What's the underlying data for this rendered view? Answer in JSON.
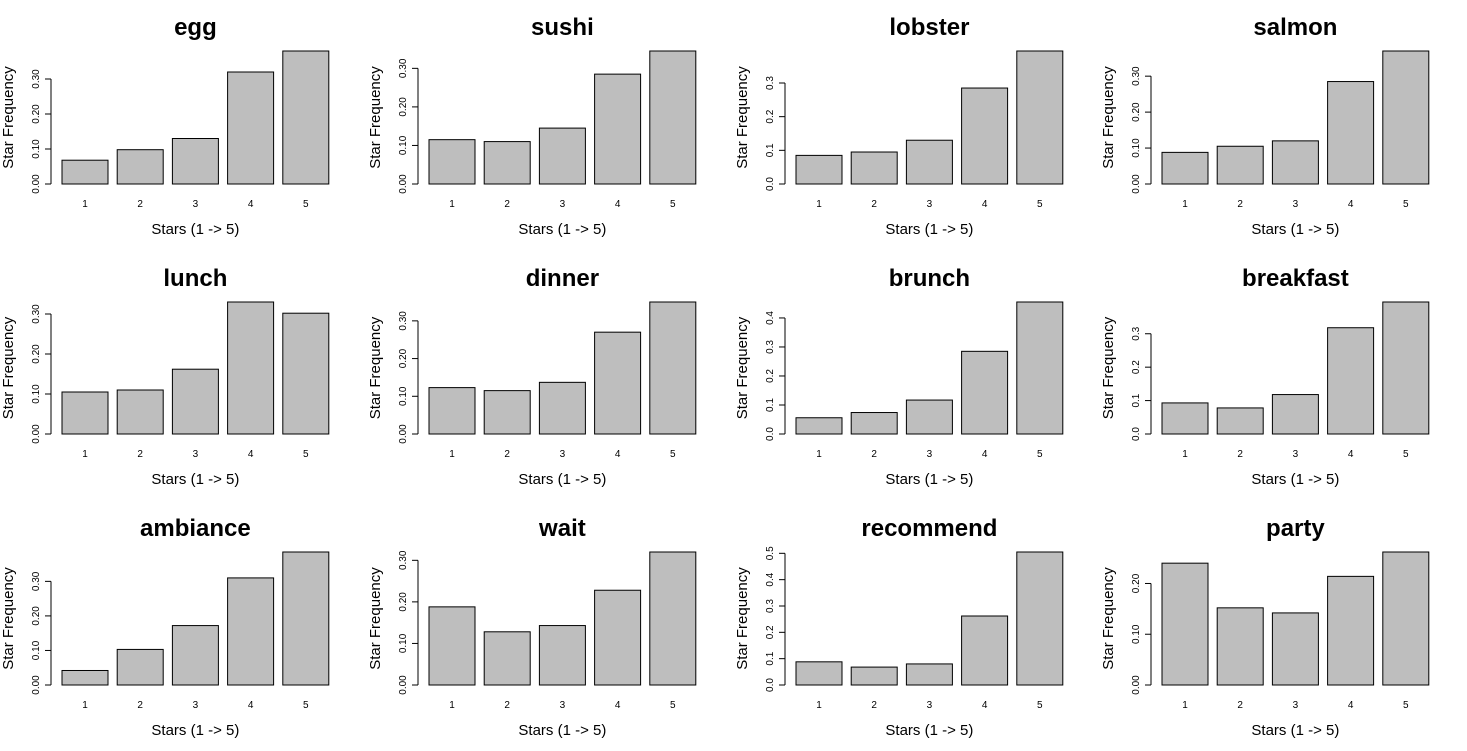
{
  "colors": {
    "bar_fill": "#bebebe",
    "bar_stroke": "#000000",
    "background": "#ffffff"
  },
  "chart_data": [
    {
      "type": "bar",
      "title": "egg",
      "xlabel": "Stars (1 -> 5)",
      "ylabel": "Star Frequency",
      "categories": [
        "1",
        "2",
        "3",
        "4",
        "5"
      ],
      "values": [
        0.068,
        0.098,
        0.13,
        0.32,
        0.38
      ],
      "ylim": [
        0,
        0.38
      ],
      "yticks": [
        0,
        0.1,
        0.2,
        0.3
      ],
      "ytick_labels": [
        "0.00",
        "0.10",
        "0.20",
        "0.30"
      ]
    },
    {
      "type": "bar",
      "title": "sushi",
      "xlabel": "Stars (1 -> 5)",
      "ylabel": "Star Frequency",
      "categories": [
        "1",
        "2",
        "3",
        "4",
        "5"
      ],
      "values": [
        0.115,
        0.11,
        0.145,
        0.285,
        0.345
      ],
      "ylim": [
        0,
        0.345
      ],
      "yticks": [
        0,
        0.1,
        0.2,
        0.3
      ],
      "ytick_labels": [
        "0.00",
        "0.10",
        "0.20",
        "0.30"
      ]
    },
    {
      "type": "bar",
      "title": "lobster",
      "xlabel": "Stars (1 -> 5)",
      "ylabel": "Star Frequency",
      "categories": [
        "1",
        "2",
        "3",
        "4",
        "5"
      ],
      "values": [
        0.085,
        0.095,
        0.13,
        0.285,
        0.395
      ],
      "ylim": [
        0,
        0.395
      ],
      "yticks": [
        0,
        0.1,
        0.2,
        0.3
      ],
      "ytick_labels": [
        "0.0",
        "0.1",
        "0.2",
        "0.3"
      ]
    },
    {
      "type": "bar",
      "title": "salmon",
      "xlabel": "Stars (1 -> 5)",
      "ylabel": "Star Frequency",
      "categories": [
        "1",
        "2",
        "3",
        "4",
        "5"
      ],
      "values": [
        0.088,
        0.105,
        0.12,
        0.285,
        0.37
      ],
      "ylim": [
        0,
        0.37
      ],
      "yticks": [
        0,
        0.1,
        0.2,
        0.3
      ],
      "ytick_labels": [
        "0.00",
        "0.10",
        "0.20",
        "0.30"
      ]
    },
    {
      "type": "bar",
      "title": "lunch",
      "xlabel": "Stars (1 -> 5)",
      "ylabel": "Star Frequency",
      "categories": [
        "1",
        "2",
        "3",
        "4",
        "5"
      ],
      "values": [
        0.105,
        0.11,
        0.162,
        0.33,
        0.302
      ],
      "ylim": [
        0,
        0.33
      ],
      "yticks": [
        0,
        0.1,
        0.2,
        0.3
      ],
      "ytick_labels": [
        "0.00",
        "0.10",
        "0.20",
        "0.30"
      ]
    },
    {
      "type": "bar",
      "title": "dinner",
      "xlabel": "Stars (1 -> 5)",
      "ylabel": "Star Frequency",
      "categories": [
        "1",
        "2",
        "3",
        "4",
        "5"
      ],
      "values": [
        0.123,
        0.115,
        0.137,
        0.27,
        0.35
      ],
      "ylim": [
        0,
        0.35
      ],
      "yticks": [
        0,
        0.1,
        0.2,
        0.3
      ],
      "ytick_labels": [
        "0.00",
        "0.10",
        "0.20",
        "0.30"
      ]
    },
    {
      "type": "bar",
      "title": "brunch",
      "xlabel": "Stars (1 -> 5)",
      "ylabel": "Star Frequency",
      "categories": [
        "1",
        "2",
        "3",
        "4",
        "5"
      ],
      "values": [
        0.056,
        0.074,
        0.117,
        0.285,
        0.455
      ],
      "ylim": [
        0,
        0.455
      ],
      "yticks": [
        0,
        0.1,
        0.2,
        0.3,
        0.4
      ],
      "ytick_labels": [
        "0.0",
        "0.1",
        "0.2",
        "0.3",
        "0.4"
      ]
    },
    {
      "type": "bar",
      "title": "breakfast",
      "xlabel": "Stars (1 -> 5)",
      "ylabel": "Star Frequency",
      "categories": [
        "1",
        "2",
        "3",
        "4",
        "5"
      ],
      "values": [
        0.093,
        0.078,
        0.118,
        0.318,
        0.395
      ],
      "ylim": [
        0,
        0.395
      ],
      "yticks": [
        0,
        0.1,
        0.2,
        0.3
      ],
      "ytick_labels": [
        "0.0",
        "0.1",
        "0.2",
        "0.3"
      ]
    },
    {
      "type": "bar",
      "title": "ambiance",
      "xlabel": "Stars (1 -> 5)",
      "ylabel": "Star Frequency",
      "categories": [
        "1",
        "2",
        "3",
        "4",
        "5"
      ],
      "values": [
        0.042,
        0.103,
        0.172,
        0.31,
        0.385
      ],
      "ylim": [
        0,
        0.385
      ],
      "yticks": [
        0,
        0.1,
        0.2,
        0.3
      ],
      "ytick_labels": [
        "0.00",
        "0.10",
        "0.20",
        "0.30"
      ]
    },
    {
      "type": "bar",
      "title": "wait",
      "xlabel": "Stars (1 -> 5)",
      "ylabel": "Star Frequency",
      "categories": [
        "1",
        "2",
        "3",
        "4",
        "5"
      ],
      "values": [
        0.188,
        0.128,
        0.143,
        0.228,
        0.32
      ],
      "ylim": [
        0,
        0.32
      ],
      "yticks": [
        0,
        0.1,
        0.2,
        0.3
      ],
      "ytick_labels": [
        "0.00",
        "0.10",
        "0.20",
        "0.30"
      ]
    },
    {
      "type": "bar",
      "title": "recommend",
      "xlabel": "Stars (1 -> 5)",
      "ylabel": "Star Frequency",
      "categories": [
        "1",
        "2",
        "3",
        "4",
        "5"
      ],
      "values": [
        0.088,
        0.068,
        0.08,
        0.262,
        0.505
      ],
      "ylim": [
        0,
        0.505
      ],
      "yticks": [
        0,
        0.1,
        0.2,
        0.3,
        0.4,
        0.5
      ],
      "ytick_labels": [
        "0.0",
        "0.1",
        "0.2",
        "0.3",
        "0.4",
        "0.5"
      ]
    },
    {
      "type": "bar",
      "title": "party",
      "xlabel": "Stars (1 -> 5)",
      "ylabel": "Star Frequency",
      "categories": [
        "1",
        "2",
        "3",
        "4",
        "5"
      ],
      "values": [
        0.24,
        0.152,
        0.142,
        0.214,
        0.262
      ],
      "ylim": [
        0,
        0.262
      ],
      "yticks": [
        0,
        0.1,
        0.2
      ],
      "ytick_labels": [
        "0.00",
        "0.10",
        "0.20"
      ]
    }
  ]
}
